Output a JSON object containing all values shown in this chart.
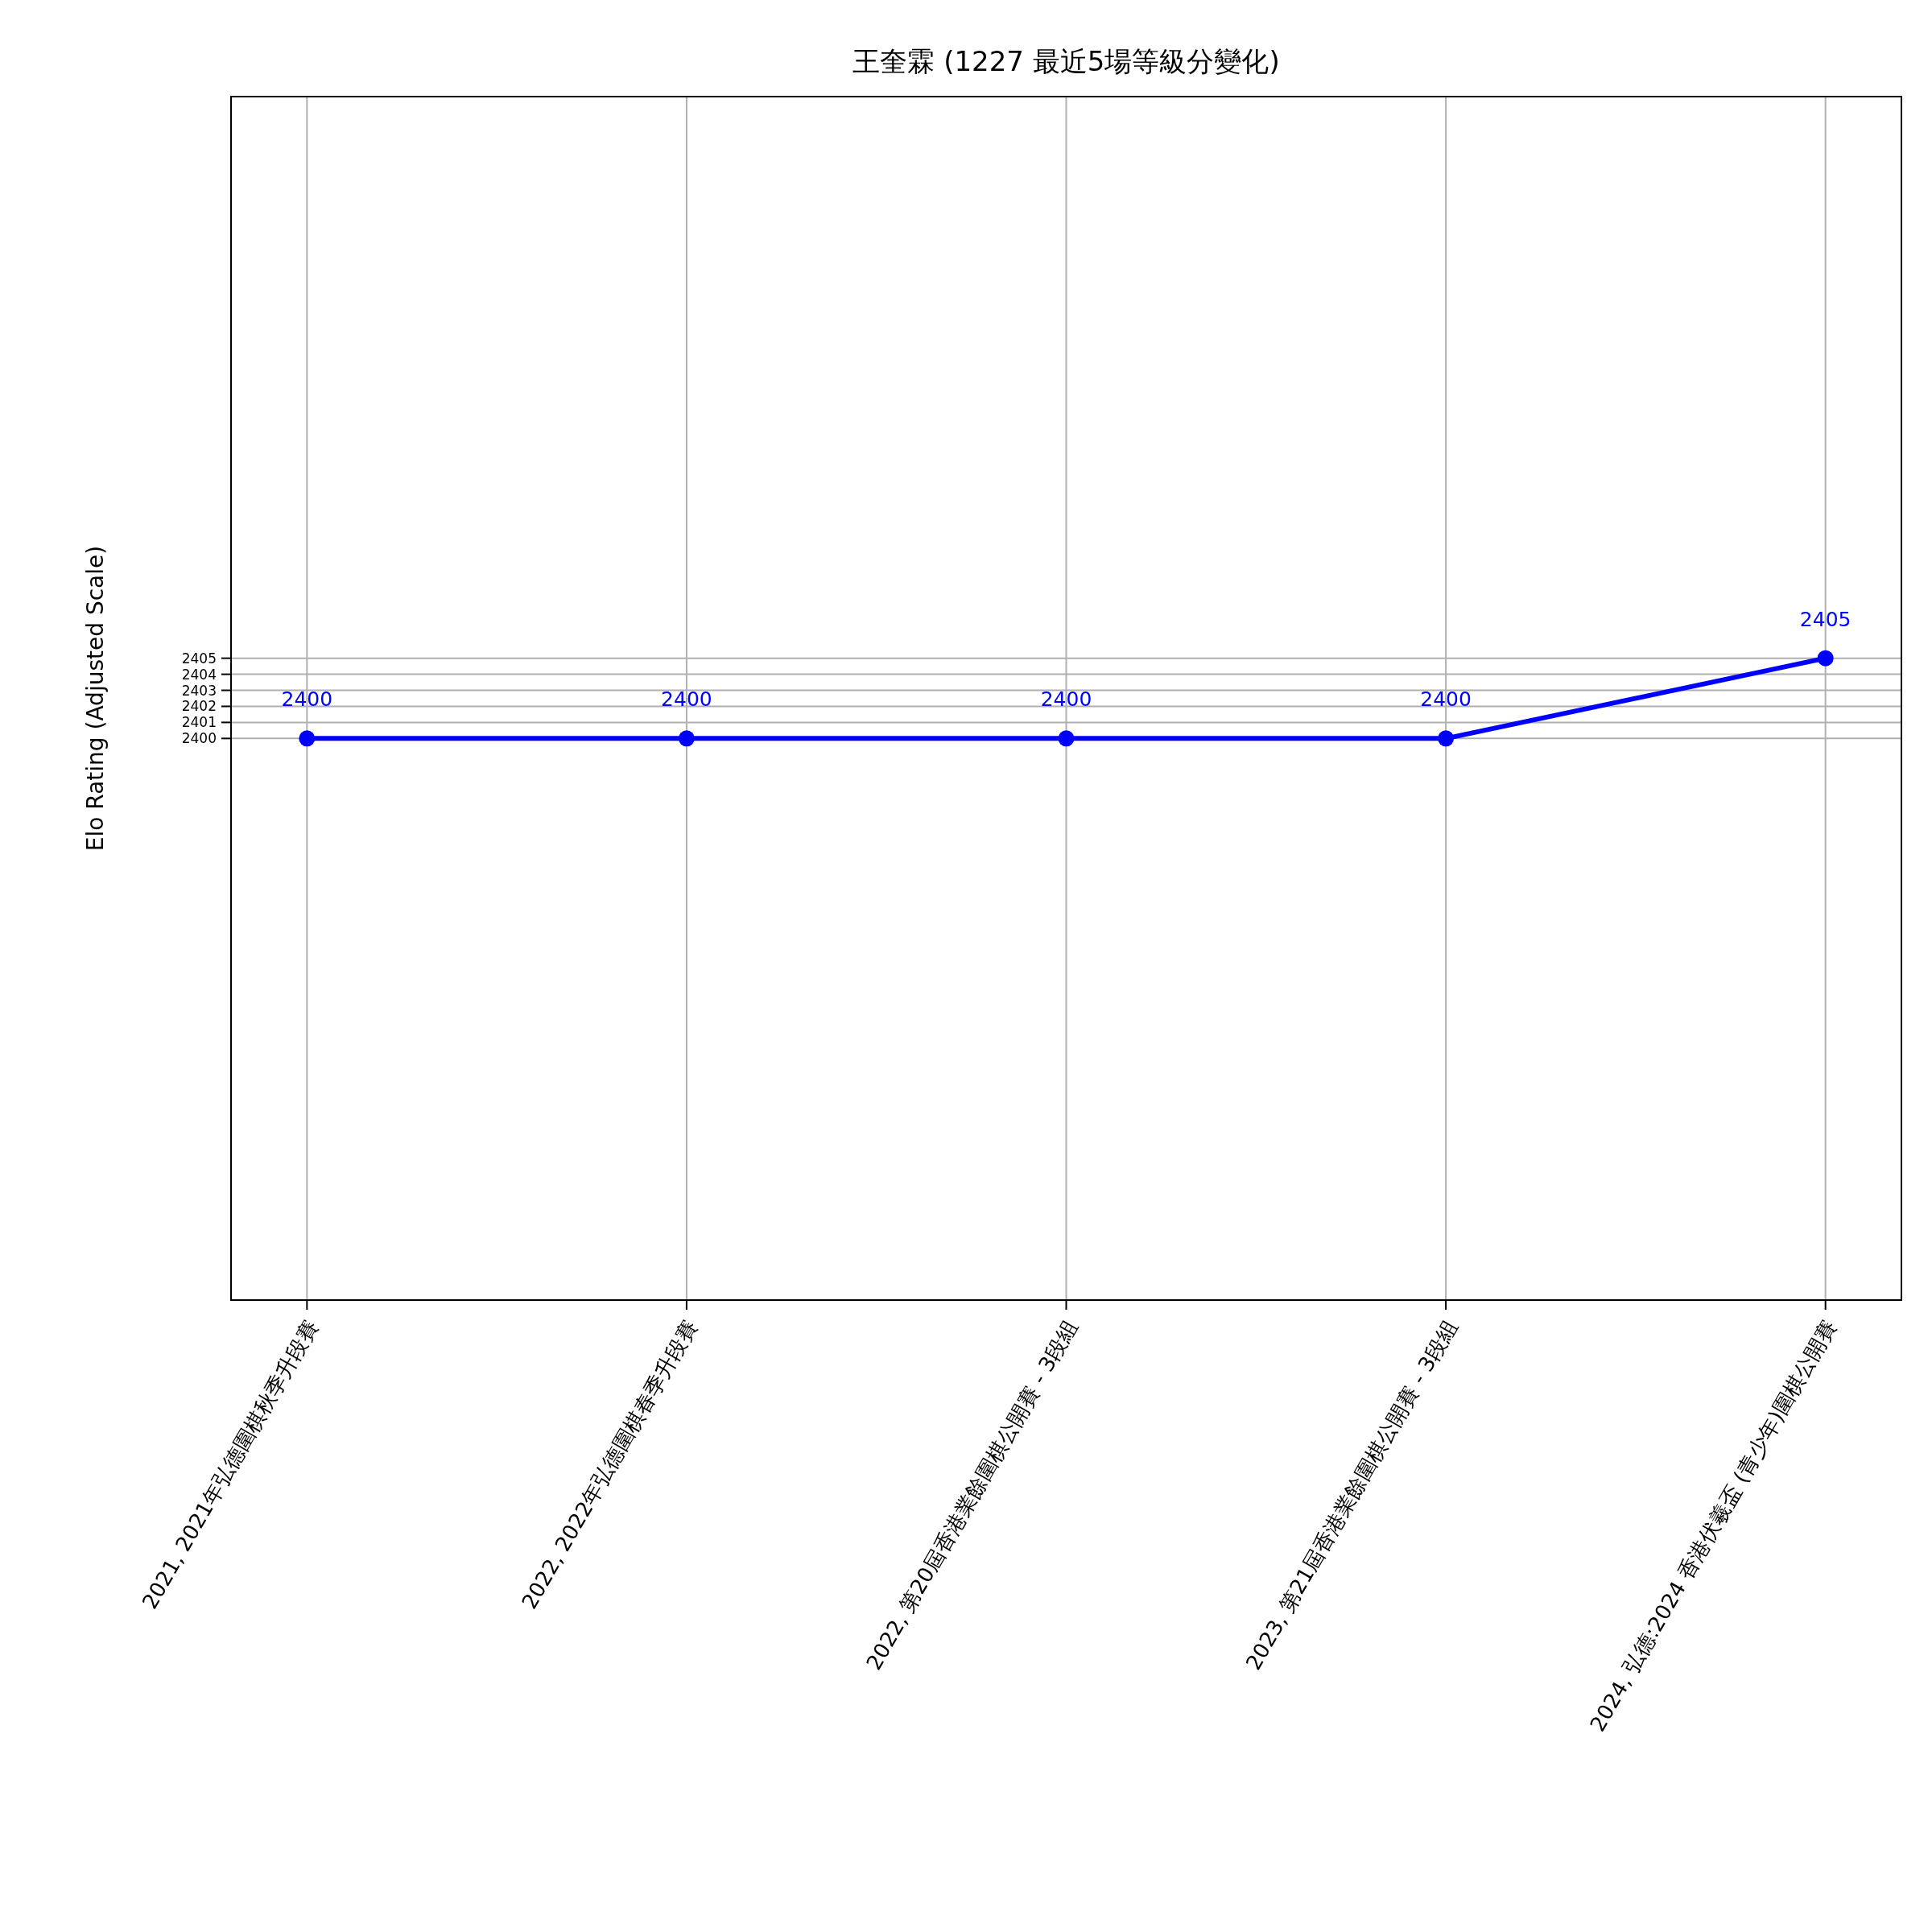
{
  "chart_data": {
    "type": "line",
    "title": "王奎霖 (1227 最近5場等級分變化)",
    "ylabel": "Elo Rating (Adjusted Scale)",
    "categories": [
      "2021, 2021年弘德圍棋秋季升段賽",
      "2022, 2022年弘德圍棋春季升段賽",
      "2022, 第20屆香港業餘圍棋公開賽 - 3段組",
      "2023, 第21屆香港業餘圍棋公開賽 - 3段組",
      "2024, 弘德:2024 香港伏羲盃 (青少年)圍棋公開賽"
    ],
    "series": [
      {
        "color": "#0000ff",
        "values": [
          2400,
          2400,
          2400,
          2400,
          2405
        ]
      }
    ],
    "ylim": [
      2365,
      2440
    ],
    "yticks": [
      2400,
      2401,
      2402,
      2403,
      2404,
      2405
    ],
    "grid": true,
    "marker": "circle",
    "line_style": "solid",
    "data_labels": true
  }
}
